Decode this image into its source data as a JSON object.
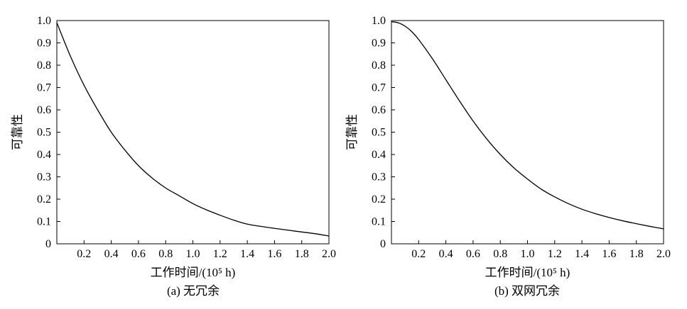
{
  "chart_data": [
    {
      "type": "line",
      "caption": "(a) 无冗余",
      "xlabel": "工作时间/(10⁵ h)",
      "ylabel": "可靠性",
      "xlim": [
        0,
        2.0
      ],
      "ylim": [
        0,
        1.0
      ],
      "xticks": [
        "0.2",
        "0.4",
        "0.6",
        "0.8",
        "1.0",
        "1.2",
        "1.4",
        "1.6",
        "1.8",
        "2.0"
      ],
      "yticks": [
        "0",
        "0.1",
        "0.2",
        "0.3",
        "0.4",
        "0.5",
        "0.6",
        "0.7",
        "0.8",
        "0.9",
        "1.0"
      ],
      "grid": false,
      "series": [
        {
          "x": [
            0,
            0.1,
            0.2,
            0.3,
            0.4,
            0.5,
            0.6,
            0.7,
            0.8,
            0.9,
            1.0,
            1.1,
            1.2,
            1.3,
            1.4,
            1.5,
            1.6,
            1.7,
            1.8,
            1.9,
            2.0
          ],
          "values": [
            0.99,
            0.84,
            0.71,
            0.6,
            0.5,
            0.42,
            0.35,
            0.295,
            0.25,
            0.215,
            0.18,
            0.152,
            0.128,
            0.106,
            0.088,
            0.078,
            0.069,
            0.061,
            0.053,
            0.045,
            0.035
          ]
        }
      ]
    },
    {
      "type": "line",
      "caption": "(b) 双网冗余",
      "xlabel": "工作时间/(10⁵ h)",
      "ylabel": "可靠性",
      "xlim": [
        0,
        2.0
      ],
      "ylim": [
        0,
        1.0
      ],
      "xticks": [
        "0.2",
        "0.4",
        "0.6",
        "0.8",
        "1.0",
        "1.2",
        "1.4",
        "1.6",
        "1.8",
        "2.0"
      ],
      "yticks": [
        "0",
        "0.1",
        "0.2",
        "0.3",
        "0.4",
        "0.5",
        "0.6",
        "0.7",
        "0.8",
        "0.9",
        "1.0"
      ],
      "grid": false,
      "series": [
        {
          "x": [
            0,
            0.05,
            0.1,
            0.15,
            0.2,
            0.3,
            0.4,
            0.5,
            0.6,
            0.7,
            0.8,
            0.9,
            1.0,
            1.1,
            1.2,
            1.3,
            1.4,
            1.5,
            1.6,
            1.7,
            1.8,
            1.9,
            2.0
          ],
          "values": [
            0.995,
            0.99,
            0.975,
            0.95,
            0.915,
            0.83,
            0.735,
            0.64,
            0.55,
            0.47,
            0.4,
            0.34,
            0.29,
            0.245,
            0.21,
            0.18,
            0.155,
            0.135,
            0.118,
            0.103,
            0.09,
            0.078,
            0.067
          ]
        }
      ]
    }
  ]
}
